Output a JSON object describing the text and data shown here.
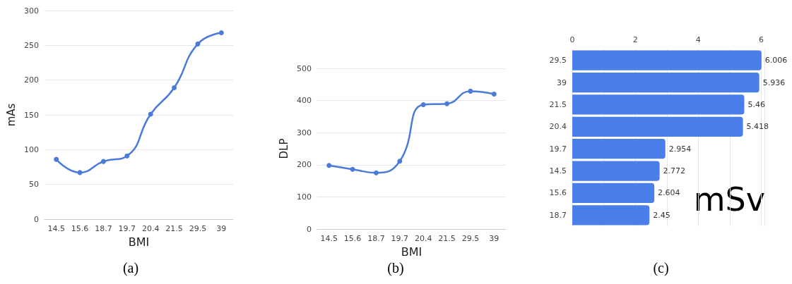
{
  "chart_data": [
    {
      "type": "line",
      "xlabel": "BMI",
      "ylabel": "mAs",
      "categories": [
        "14.5",
        "15.6",
        "18.7",
        "19.7",
        "20.4",
        "21.5",
        "29.5",
        "39"
      ],
      "series": [
        {
          "color": "#4a7bd8",
          "values": [
            86,
            67,
            83,
            91,
            151,
            189,
            252,
            268
          ]
        }
      ],
      "ylim": [
        0,
        300
      ],
      "yticks": [
        0,
        50,
        100,
        150,
        200,
        250,
        300
      ],
      "grid": "y",
      "marker": "circle",
      "line_style": "solid",
      "annotations": [
        "(a)"
      ]
    },
    {
      "type": "line",
      "xlabel": "BMI",
      "ylabel": "DLP",
      "categories": [
        "14.5",
        "15.6",
        "18.7",
        "19.7",
        "20.4",
        "21.5",
        "29.5",
        "39"
      ],
      "series": [
        {
          "color": "#4a7bd8",
          "values": [
            198,
            186,
            175,
            211,
            387,
            390,
            429,
            420
          ]
        }
      ],
      "ylim": [
        0,
        500
      ],
      "yticks": [
        0,
        100,
        200,
        300,
        400,
        500
      ],
      "grid": "y",
      "marker": "circle",
      "line_style": "solid",
      "annotations": [
        "(b)"
      ]
    },
    {
      "type": "bar",
      "orientation": "horizontal",
      "categories": [
        "29.5",
        "39",
        "21.5",
        "20.4",
        "19.7",
        "14.5",
        "15.6",
        "18.7"
      ],
      "series": [
        {
          "color": "#4a7fea",
          "values": [
            6.006,
            5.936,
            5.46,
            5.418,
            2.954,
            2.772,
            2.604,
            2.45
          ]
        }
      ],
      "xlim": [
        0,
        6.1
      ],
      "xticks": [
        0,
        2,
        4,
        6
      ],
      "grid": "x",
      "data_labels": true,
      "annotations": [
        "mSv",
        "(c)"
      ]
    }
  ]
}
